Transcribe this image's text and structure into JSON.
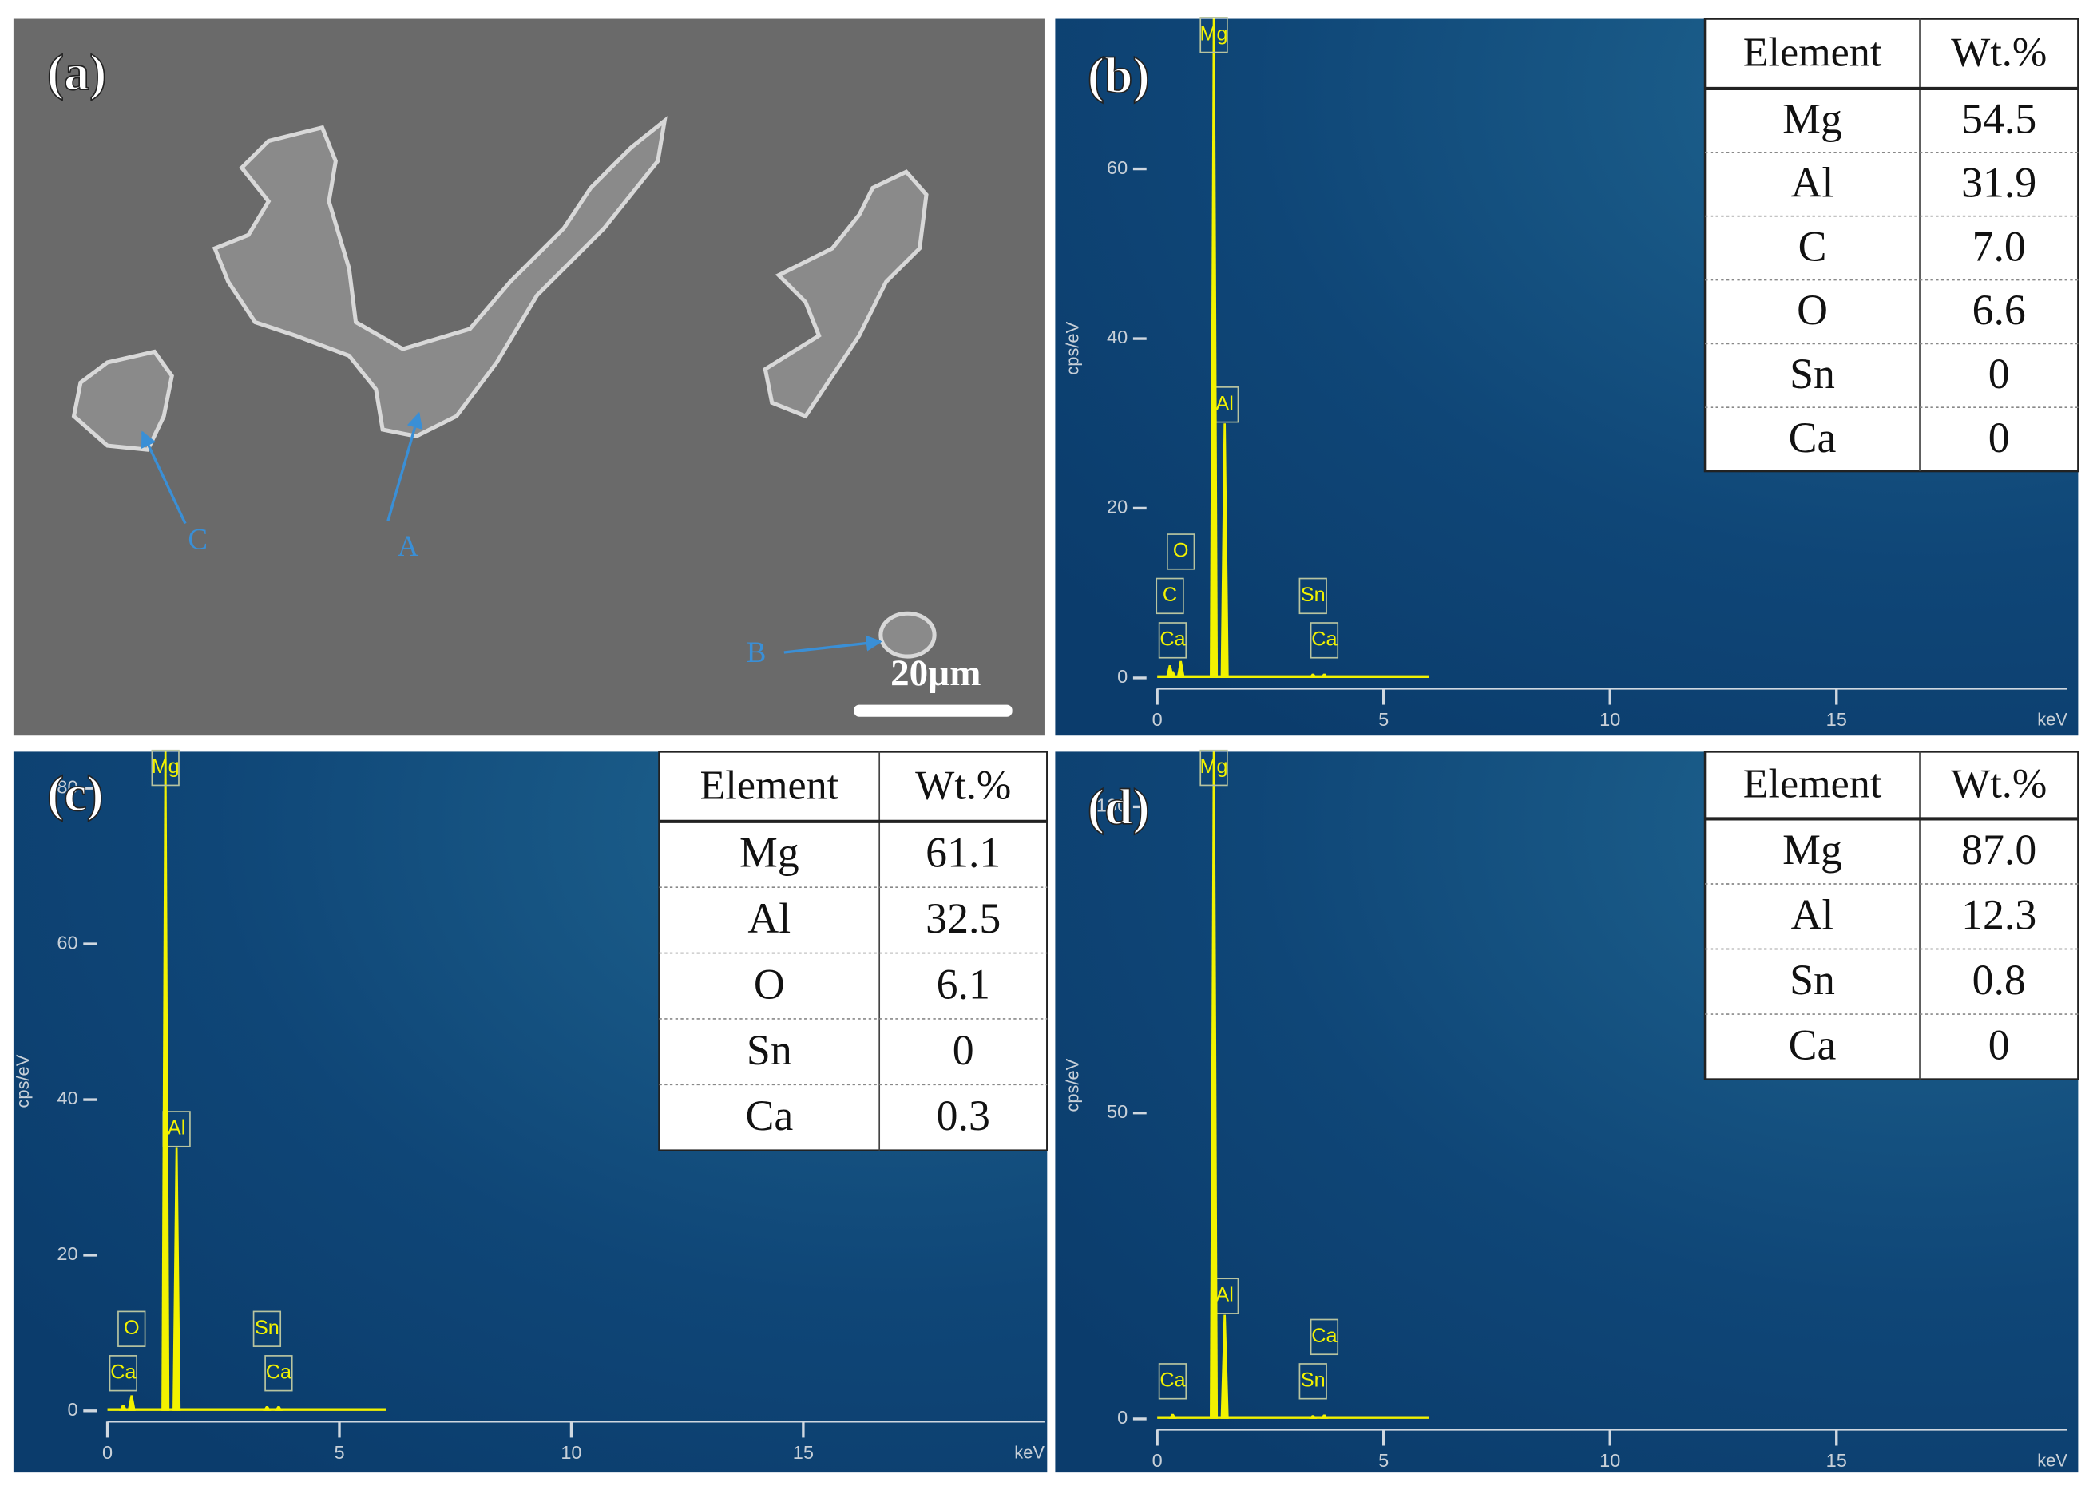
{
  "image_panel": {
    "label": "(a)",
    "annotations": [
      "A",
      "B",
      "C"
    ],
    "scale_bar": "20µm"
  },
  "chart_data": [
    {
      "type": "spectrum",
      "label": "(b)",
      "y_label": "cps/eV",
      "x_label": "keV",
      "xlim": [
        0,
        20.1
      ],
      "xticks": [
        0,
        5,
        10,
        15
      ],
      "ylim": [
        0,
        77.7
      ],
      "yticks": [
        0,
        20,
        40,
        60
      ],
      "color": "#f2f200",
      "peaks": [
        {
          "name": "Mg",
          "x": 1.25,
          "value": 77.7
        },
        {
          "name": "Al",
          "x": 1.49,
          "value": 30
        },
        {
          "name": "O",
          "x": 0.52,
          "value": 2
        },
        {
          "name": "C",
          "x": 0.28,
          "value": 1.5
        },
        {
          "name": "Ca",
          "x": 0.34,
          "value": 0.8
        },
        {
          "name": "Ca",
          "x": 3.69,
          "value": 0.5
        },
        {
          "name": "Sn",
          "x": 3.44,
          "value": 0.5
        }
      ],
      "table": {
        "columns": [
          "Element",
          "Wt.%"
        ],
        "rows": [
          [
            "Mg",
            "54.5"
          ],
          [
            "Al",
            "31.9"
          ],
          [
            "C",
            "7.0"
          ],
          [
            "O",
            "6.6"
          ],
          [
            "Sn",
            "0"
          ],
          [
            "Ca",
            "0"
          ]
        ]
      }
    },
    {
      "type": "spectrum",
      "label": "(c)",
      "y_label": "cps/eV",
      "x_label": "keV",
      "xlim": [
        0,
        20.2
      ],
      "xticks": [
        0,
        5,
        10,
        15
      ],
      "ylim": [
        0,
        84.7
      ],
      "yticks": [
        0,
        20,
        40,
        60,
        80
      ],
      "color": "#f2f200",
      "peaks": [
        {
          "name": "Mg",
          "x": 1.25,
          "value": 84.7
        },
        {
          "name": "Al",
          "x": 1.49,
          "value": 33.8
        },
        {
          "name": "O",
          "x": 0.52,
          "value": 2
        },
        {
          "name": "Ca",
          "x": 0.34,
          "value": 0.8
        },
        {
          "name": "Ca",
          "x": 3.69,
          "value": 0.6
        },
        {
          "name": "Sn",
          "x": 3.44,
          "value": 0.6
        }
      ],
      "table": {
        "columns": [
          "Element",
          "Wt.%"
        ],
        "rows": [
          [
            "Mg",
            "61.1"
          ],
          [
            "Al",
            "32.5"
          ],
          [
            "O",
            "6.1"
          ],
          [
            "Sn",
            "0"
          ],
          [
            "Ca",
            "0.3"
          ]
        ]
      }
    },
    {
      "type": "spectrum",
      "label": "(d)",
      "y_label": "cps/eV",
      "x_label": "keV",
      "xlim": [
        0,
        20.1
      ],
      "xticks": [
        0,
        5,
        10,
        15
      ],
      "ylim": [
        0,
        109
      ],
      "yticks": [
        0,
        50,
        100
      ],
      "color": "#f2f200",
      "peaks": [
        {
          "name": "Mg",
          "x": 1.25,
          "value": 109
        },
        {
          "name": "Al",
          "x": 1.49,
          "value": 17
        },
        {
          "name": "Ca",
          "x": 0.34,
          "value": 0.8
        },
        {
          "name": "Sn",
          "x": 3.44,
          "value": 0.6
        },
        {
          "name": "Ca",
          "x": 3.69,
          "value": 0.7
        }
      ],
      "table": {
        "columns": [
          "Element",
          "Wt.%"
        ],
        "rows": [
          [
            "Mg",
            "87.0"
          ],
          [
            "Al",
            "12.3"
          ],
          [
            "Sn",
            "0.8"
          ],
          [
            "Ca",
            "0"
          ]
        ]
      }
    }
  ]
}
